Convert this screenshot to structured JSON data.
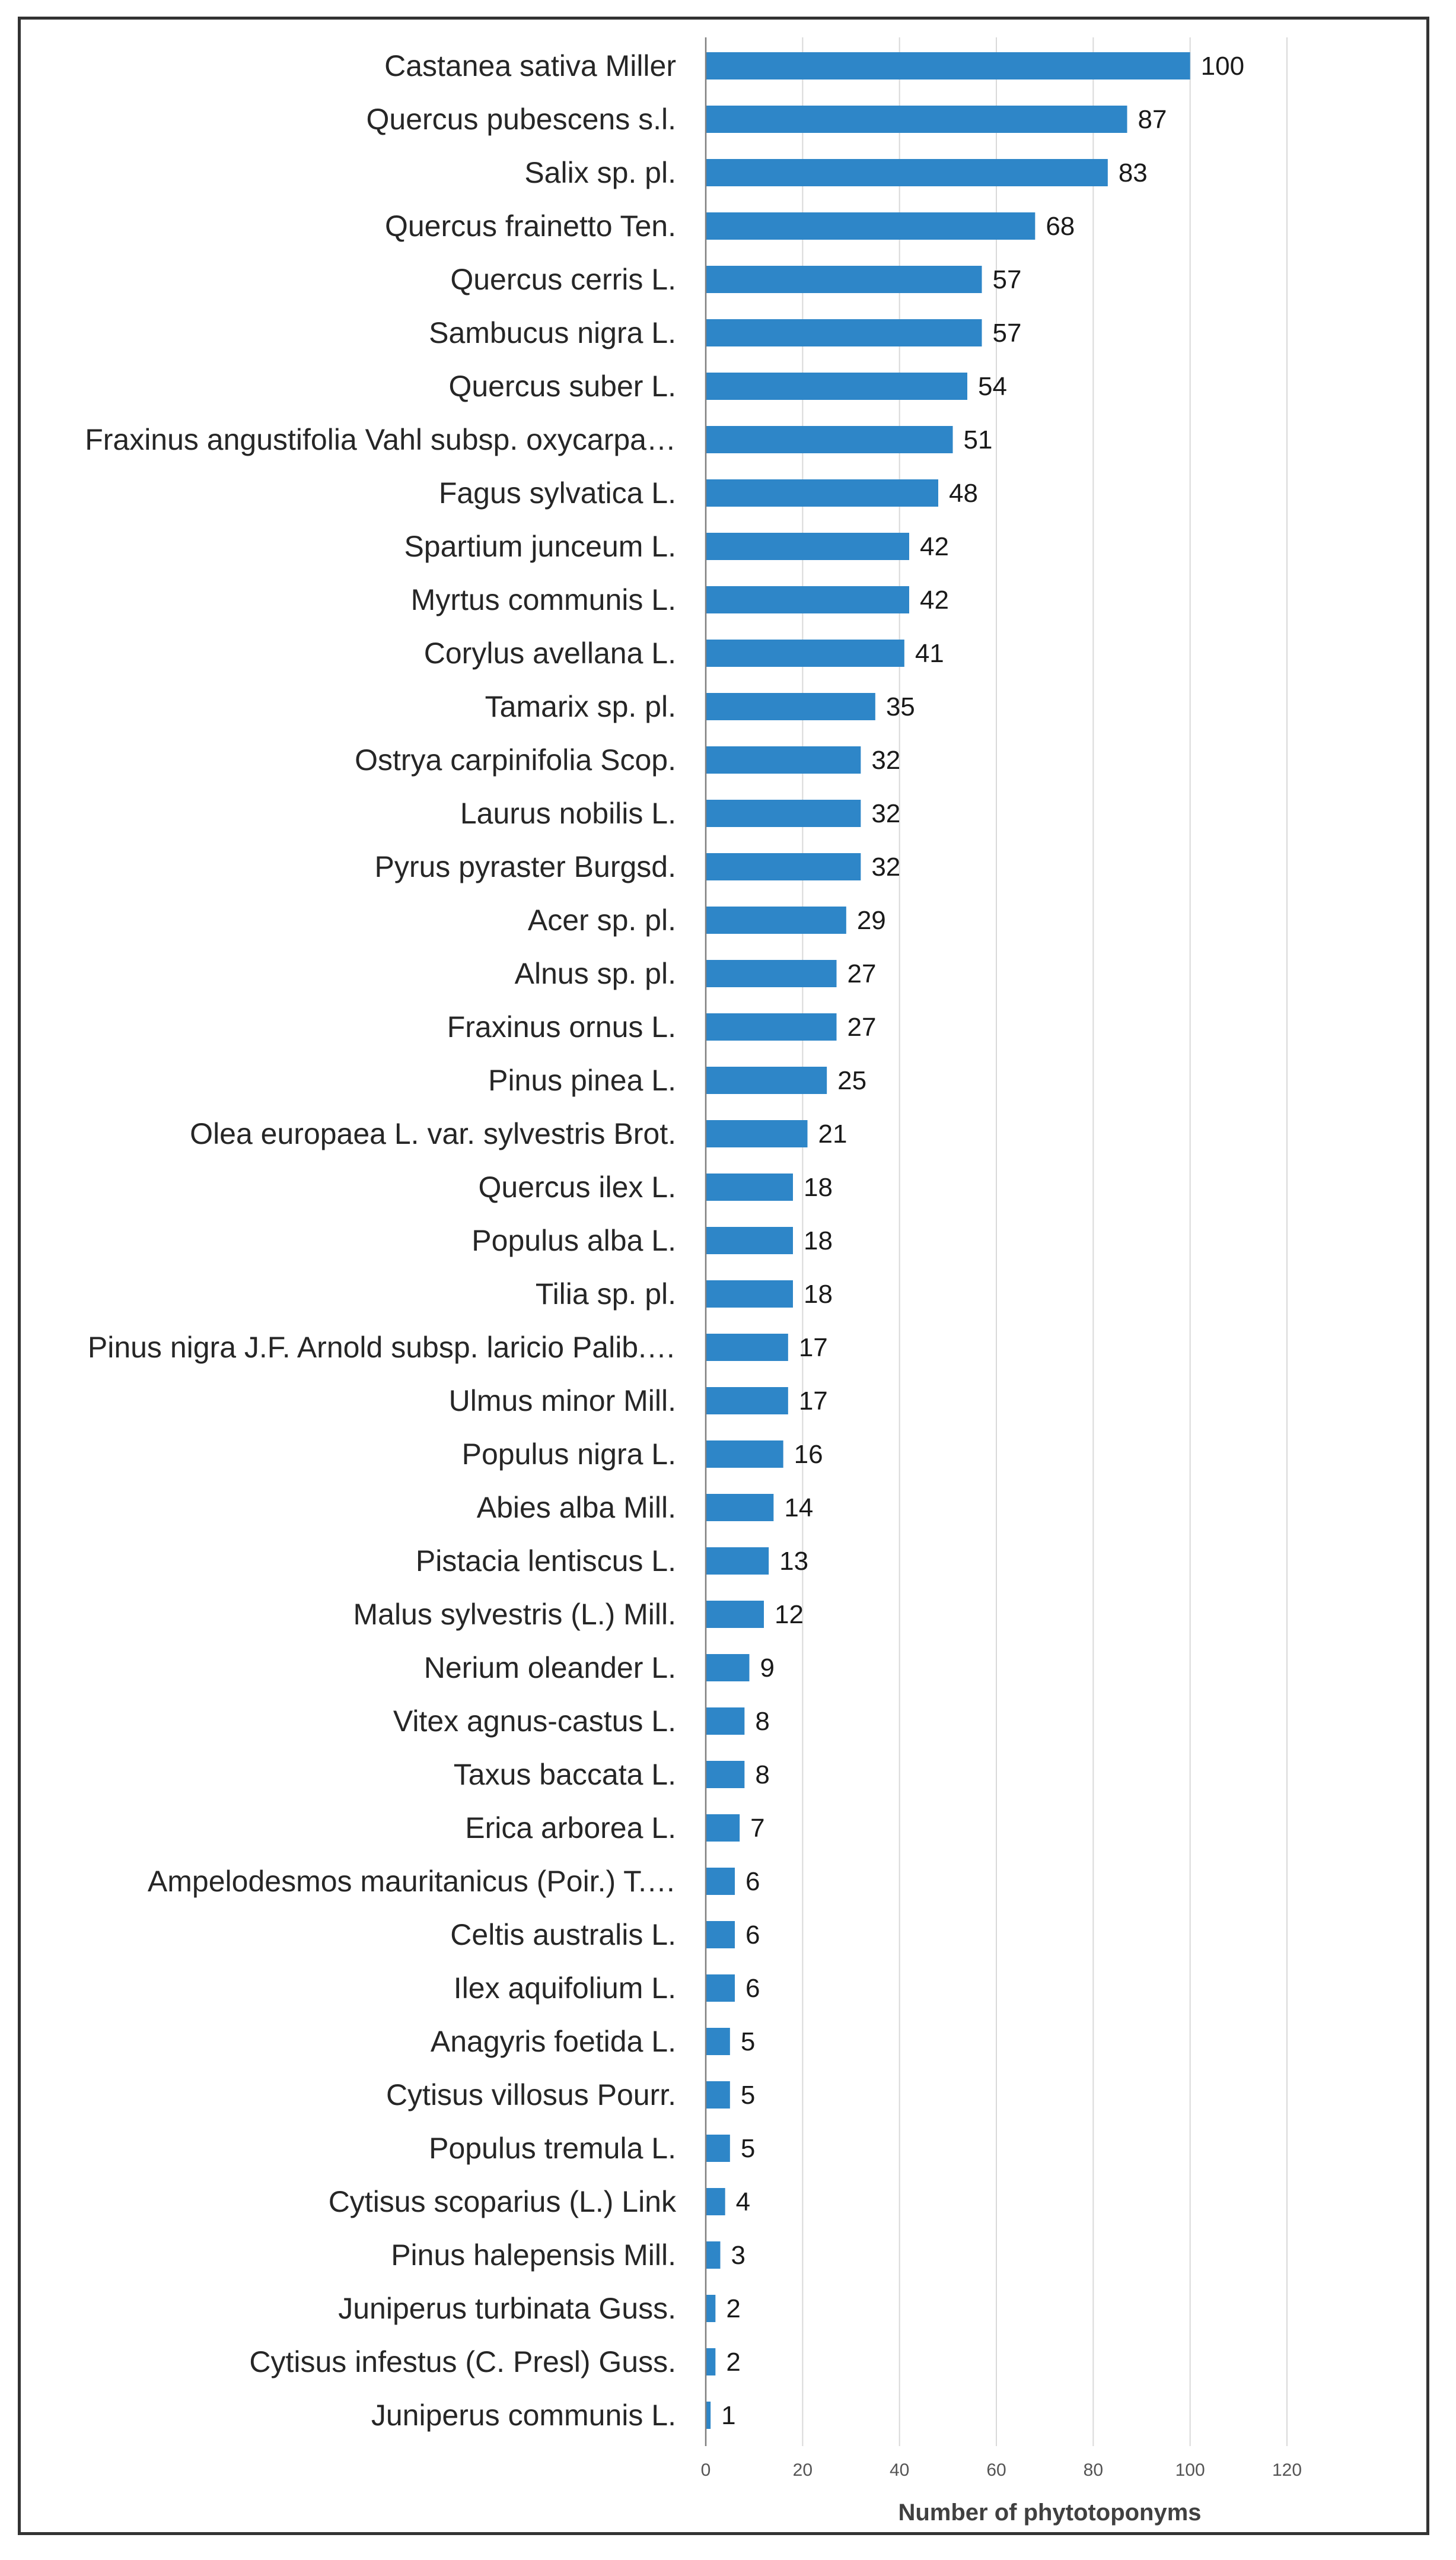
{
  "chart_data": {
    "type": "bar",
    "orientation": "horizontal",
    "title": "",
    "xlabel": "Number of  phytotoponyms",
    "ylabel": "",
    "xlim": [
      0,
      120
    ],
    "xticks": [
      0,
      20,
      40,
      60,
      80,
      100,
      120
    ],
    "grid": "vertical",
    "bar_color": "#2e86c8",
    "categories": [
      "Castanea sativa Miller",
      "Quercus pubescens s.l.",
      "Salix sp. pl.",
      "Quercus frainetto Ten.",
      "Quercus cerris L.",
      "Sambucus nigra L.",
      "Quercus suber L.",
      "Fraxinus angustifolia Vahl subsp. oxycarpa…",
      "Fagus sylvatica L.",
      "Spartium junceum L.",
      "Myrtus communis L.",
      "Corylus avellana L.",
      "Tamarix sp. pl.",
      "Ostrya carpinifolia Scop.",
      "Laurus nobilis L.",
      "Pyrus pyraster Burgsd.",
      "Acer sp. pl.",
      "Alnus sp. pl.",
      "Fraxinus ornus L.",
      "Pinus pinea L.",
      "Olea europaea L. var. sylvestris Brot.",
      "Quercus ilex L.",
      "Populus alba L.",
      "Tilia sp. pl.",
      "Pinus nigra J.F. Arnold subsp. laricio Palib.…",
      "Ulmus minor Mill.",
      "Populus nigra L.",
      "Abies alba Mill.",
      "Pistacia lentiscus L.",
      "Malus sylvestris (L.) Mill.",
      "Nerium oleander L.",
      "Vitex agnus-castus L.",
      "Taxus baccata L.",
      "Erica arborea L.",
      "Ampelodesmos mauritanicus (Poir.) T.…",
      "Celtis australis L.",
      "Ilex aquifolium L.",
      "Anagyris foetida L.",
      "Cytisus villosus Pourr.",
      "Populus tremula L.",
      "Cytisus scoparius (L.) Link",
      "Pinus halepensis Mill.",
      "Juniperus turbinata Guss.",
      "Cytisus infestus (C. Presl) Guss.",
      "Juniperus communis L."
    ],
    "values": [
      100,
      87,
      83,
      68,
      57,
      57,
      54,
      51,
      48,
      42,
      42,
      41,
      35,
      32,
      32,
      32,
      29,
      27,
      27,
      25,
      21,
      18,
      18,
      18,
      17,
      17,
      16,
      14,
      13,
      12,
      9,
      8,
      8,
      7,
      6,
      6,
      6,
      5,
      5,
      5,
      4,
      3,
      2,
      2,
      1
    ]
  }
}
